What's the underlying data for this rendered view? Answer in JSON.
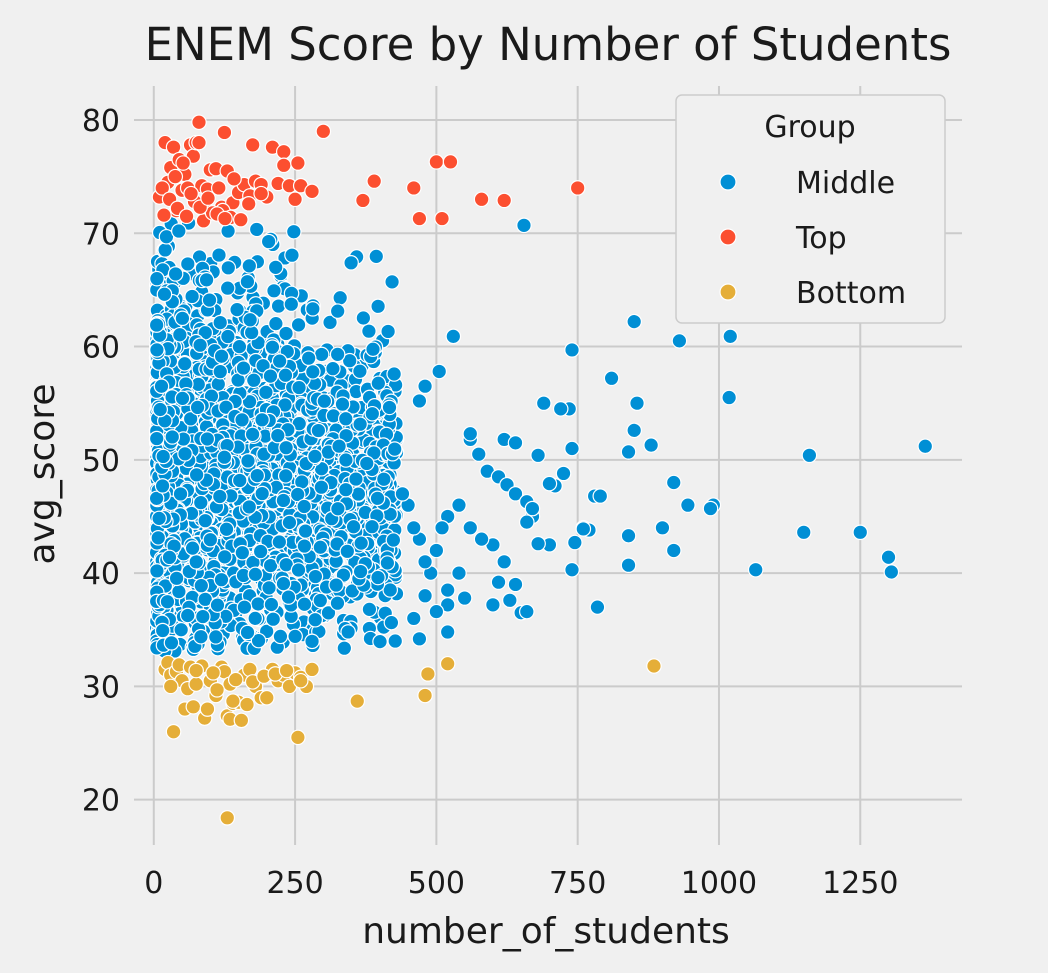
{
  "chart_data": {
    "type": "scatter",
    "title": "ENEM Score by Number of Students",
    "xlabel": "number_of_students",
    "ylabel": "avg_score",
    "xlim": [
      -35,
      1430
    ],
    "ylim": [
      16,
      83
    ],
    "xticks": [
      0,
      250,
      500,
      750,
      1000,
      1250
    ],
    "yticks": [
      20,
      30,
      40,
      50,
      60,
      70,
      80
    ],
    "grid": true,
    "legend": {
      "title": "Group",
      "placement": "top-right",
      "entries": [
        "Middle",
        "Top",
        "Bottom"
      ]
    },
    "colors": {
      "Middle": "#008fd5",
      "Top": "#fc4f30",
      "Bottom": "#e5ae38",
      "background": "#f0f0f0",
      "grid": "#cbcbcb"
    },
    "series": [
      {
        "name": "Middle",
        "dense_region": {
          "note": "dense cloud of points, approx. counts",
          "x_range": [
            5,
            430
          ],
          "y_range": [
            33,
            71
          ],
          "count": 2600
        },
        "x": [
          655,
          850,
          930,
          1020,
          1018,
          740,
          810,
          855,
          850,
          840,
          880,
          1160,
          1365,
          920,
          945,
          990,
          985,
          1150,
          1250,
          1300,
          1305,
          1065,
          900,
          920,
          780,
          790,
          760,
          740,
          735,
          725,
          710,
          700,
          680,
          670,
          660,
          650,
          640,
          620,
          600,
          580,
          560,
          540,
          520,
          510,
          500,
          490,
          480,
          470,
          460,
          450,
          440,
          560,
          620,
          640,
          690,
          720,
          770,
          700,
          680,
          560,
          575,
          590,
          610,
          625,
          640,
          660,
          670,
          740,
          745,
          760,
          840,
          840,
          785,
          610,
          540,
          520,
          500,
          470,
          460,
          480,
          520,
          550,
          600,
          630,
          660,
          520,
          530,
          505,
          480,
          470
        ],
        "y": [
          70.7,
          62.2,
          60.5,
          60.9,
          55.5,
          59.7,
          57.2,
          55.0,
          52.6,
          50.7,
          51.3,
          50.4,
          51.2,
          48.0,
          46.0,
          46.0,
          45.7,
          43.6,
          43.6,
          41.4,
          40.1,
          40.3,
          44.0,
          42.0,
          46.8,
          46.8,
          44.0,
          51.0,
          54.5,
          48.8,
          47.7,
          47.9,
          50.4,
          45.0,
          44.5,
          36.5,
          39.0,
          41.0,
          42.5,
          43.0,
          44.0,
          46.0,
          45.0,
          44.0,
          42.0,
          40.0,
          41.0,
          43.0,
          44.0,
          46.0,
          47.0,
          51.8,
          51.8,
          51.5,
          55.0,
          54.5,
          43.8,
          42.5,
          42.6,
          52.3,
          50.5,
          49.0,
          48.5,
          47.8,
          47.0,
          46.3,
          45.7,
          40.3,
          42.7,
          43.9,
          43.3,
          40.7,
          37.0,
          39.2,
          40.0,
          37.2,
          36.6,
          34.2,
          36.0,
          38.0,
          38.5,
          37.8,
          37.2,
          37.6,
          36.6,
          34.8,
          60.9,
          57.8,
          56.5,
          55.2
        ]
      },
      {
        "name": "Top",
        "x": [
          10,
          20,
          25,
          30,
          35,
          40,
          45,
          50,
          55,
          60,
          65,
          70,
          75,
          80,
          85,
          90,
          95,
          100,
          110,
          115,
          120,
          130,
          140,
          150,
          160,
          170,
          175,
          180,
          190,
          200,
          210,
          220,
          230,
          240,
          250,
          260,
          280,
          300,
          370,
          390,
          460,
          470,
          500,
          510,
          525,
          580,
          620,
          750,
          15,
          28,
          42,
          58,
          72,
          88,
          104,
          122,
          136,
          154,
          168,
          18,
          38,
          52,
          66,
          82,
          96,
          112,
          126,
          142,
          80,
          125,
          190,
          230,
          255
        ],
        "y": [
          73.2,
          78.0,
          74.5,
          75.8,
          77.6,
          72.0,
          76.5,
          73.8,
          75.2,
          74.0,
          77.8,
          76.8,
          78.0,
          79.8,
          74.2,
          72.5,
          73.9,
          75.6,
          75.7,
          74.0,
          72.3,
          75.5,
          72.7,
          73.6,
          74.3,
          73.3,
          77.8,
          74.6,
          74.3,
          73.2,
          77.6,
          74.4,
          77.2,
          74.2,
          73.0,
          74.2,
          73.7,
          79.0,
          72.9,
          74.6,
          74.0,
          71.3,
          76.3,
          71.3,
          76.3,
          73.0,
          72.9,
          74.0,
          74.0,
          73.0,
          72.2,
          71.5,
          72.8,
          71.1,
          71.8,
          72.0,
          71.4,
          71.2,
          72.6,
          71.6,
          75.0,
          76.2,
          73.5,
          72.3,
          73.1,
          71.7,
          71.3,
          74.8,
          78.0,
          78.9,
          73.5,
          76.0,
          76.2
        ]
      },
      {
        "name": "Bottom",
        "x": [
          20,
          25,
          30,
          35,
          40,
          50,
          55,
          60,
          70,
          75,
          80,
          90,
          95,
          100,
          110,
          120,
          125,
          130,
          135,
          140,
          150,
          160,
          170,
          180,
          190,
          200,
          210,
          220,
          230,
          240,
          250,
          255,
          260,
          270,
          280,
          360,
          480,
          485,
          520,
          885,
          30,
          135,
          140,
          155,
          165,
          130,
          45,
          65,
          85,
          105,
          145,
          175,
          195,
          215,
          235,
          260,
          75,
          112
        ],
        "y": [
          31.5,
          32.1,
          31.0,
          26.0,
          31.3,
          30.5,
          28.0,
          29.8,
          28.2,
          30.2,
          31.6,
          27.2,
          28.0,
          30.5,
          29.2,
          31.7,
          31.3,
          27.4,
          30.2,
          28.5,
          28.6,
          31.0,
          31.5,
          30.0,
          29.0,
          29.0,
          31.5,
          30.5,
          31.0,
          30.0,
          31.2,
          25.5,
          30.8,
          30.0,
          31.5,
          28.7,
          29.2,
          31.1,
          32.0,
          31.8,
          30.0,
          27.1,
          28.7,
          27.0,
          28.4,
          18.4,
          31.9,
          31.7,
          31.8,
          31.2,
          30.6,
          30.4,
          30.9,
          31.1,
          31.4,
          30.5,
          31.4,
          29.7
        ]
      }
    ]
  }
}
